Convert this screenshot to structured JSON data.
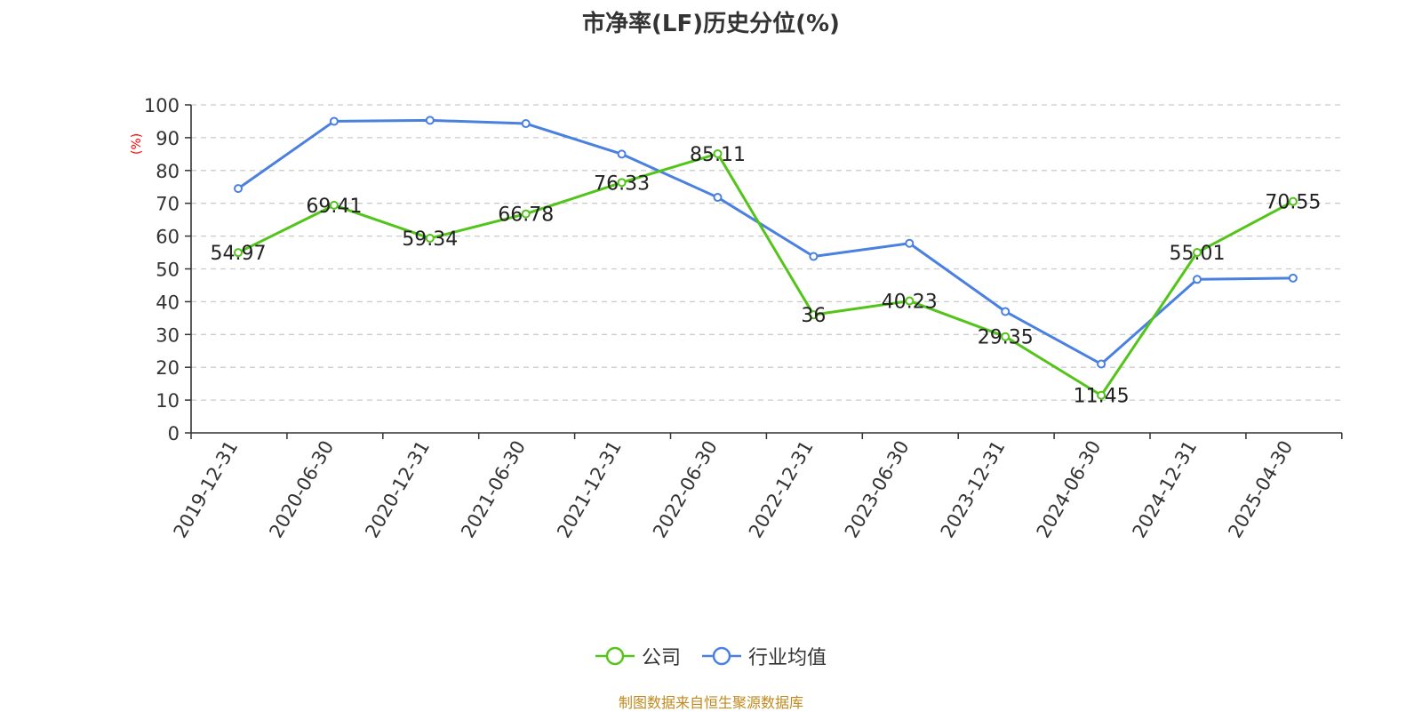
{
  "chart_data": {
    "type": "line",
    "title": "市净率(LF)历史分位(%)",
    "ylabel": "(%)",
    "xlabel": "",
    "ylim": [
      0,
      100
    ],
    "yticks": [
      0,
      10,
      20,
      30,
      40,
      50,
      60,
      70,
      80,
      90,
      100
    ],
    "categories": [
      "2019-12-31",
      "2020-06-30",
      "2020-12-31",
      "2021-06-30",
      "2021-12-31",
      "2022-06-30",
      "2022-12-31",
      "2023-06-30",
      "2023-12-31",
      "2024-06-30",
      "2024-12-31",
      "2025-04-30"
    ],
    "grid": true,
    "legend_position": "bottom",
    "series": [
      {
        "name": "公司",
        "color": "#52c41a",
        "values": [
          54.97,
          69.41,
          59.34,
          66.78,
          76.33,
          85.11,
          36,
          40.23,
          29.35,
          11.45,
          55.01,
          70.55
        ],
        "labels": [
          "54.97",
          "69.41",
          "59.34",
          "66.78",
          "76.33",
          "85.11",
          "36",
          "40.23",
          "29.35",
          "11.45",
          "55.01",
          "70.55"
        ]
      },
      {
        "name": "行业均值",
        "color": "#4a80e0",
        "values": [
          74.5,
          95,
          95.3,
          94.3,
          85,
          71.8,
          53.8,
          57.8,
          37,
          21,
          46.8,
          47.2
        ]
      }
    ]
  },
  "footer": {
    "source": "制图数据来自恒生聚源数据库"
  }
}
